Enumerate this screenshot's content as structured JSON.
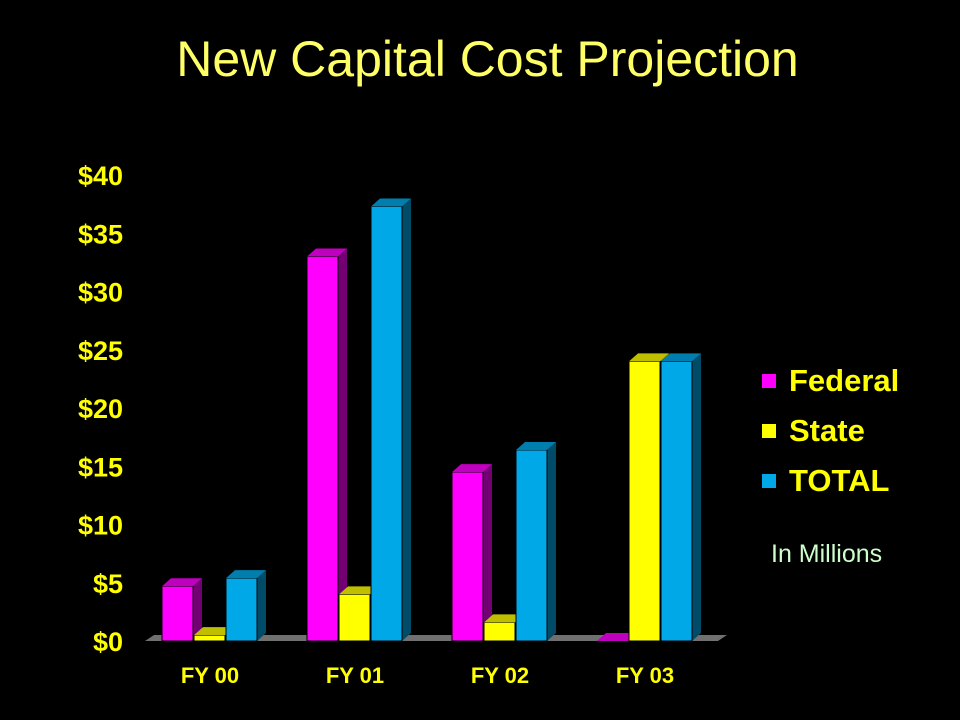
{
  "slide": {
    "title": "New Capital Cost Projection"
  },
  "colors": {
    "Federal": "#FF00FF",
    "State": "#FFFF00",
    "TOTAL": "#00A8E8",
    "floor": "#707070"
  },
  "note": "In Millions",
  "chart_data": {
    "type": "bar",
    "title": "New Capital Cost Projection",
    "categories": [
      "FY 00",
      "FY 01",
      "FY 02",
      "FY 03"
    ],
    "series": [
      {
        "name": "Federal",
        "values": [
          4.7,
          33.0,
          14.5,
          0.0
        ]
      },
      {
        "name": "State",
        "values": [
          0.5,
          4.0,
          1.6,
          24.0
        ]
      },
      {
        "name": "TOTAL",
        "values": [
          5.4,
          37.3,
          16.4,
          24.0
        ]
      }
    ],
    "ylim": [
      0,
      40
    ],
    "yticks": [
      0,
      5,
      10,
      15,
      20,
      25,
      30,
      35,
      40
    ],
    "ytick_labels": [
      "$0",
      "$5",
      "$10",
      "$15",
      "$20",
      "$25",
      "$30",
      "$35",
      "$40"
    ],
    "legend_position": "right",
    "grid": false
  }
}
